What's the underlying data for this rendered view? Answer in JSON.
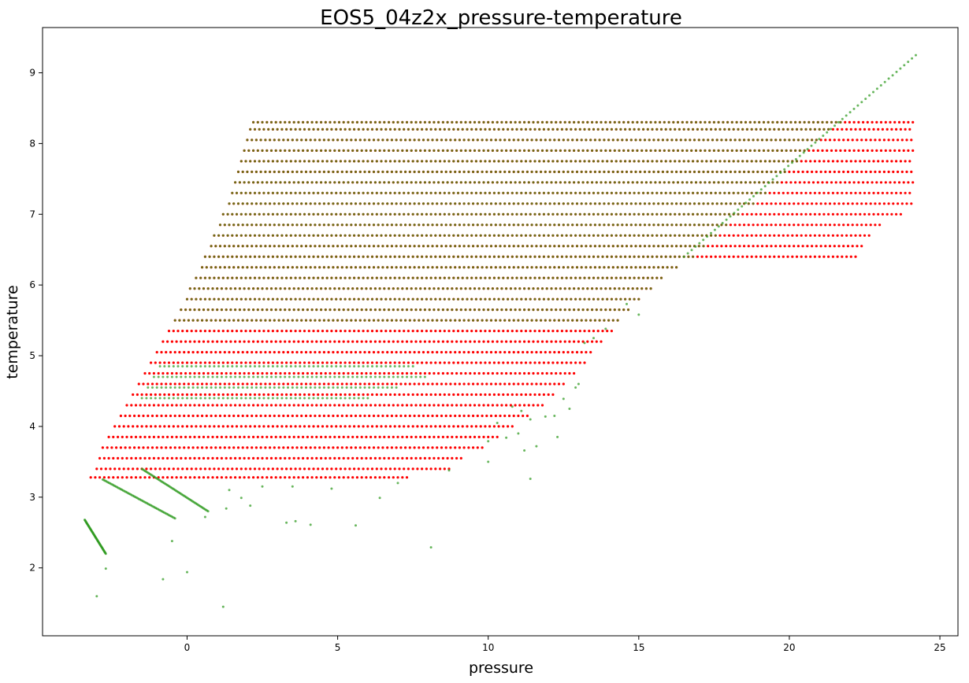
{
  "chart_data": {
    "type": "scatter",
    "title": "EOS5_04z2x_pressure-temperature",
    "xlabel": "pressure",
    "ylabel": "temperature",
    "xlim": [
      -4.8,
      25.6
    ],
    "ylim": [
      1.04,
      9.64
    ],
    "x_ticks": [
      0,
      5,
      10,
      15,
      20,
      25
    ],
    "y_ticks": [
      2,
      3,
      4,
      5,
      6,
      7,
      8,
      9
    ],
    "grid": false,
    "legend": "none",
    "series": [
      {
        "color": "#ff0000",
        "marker": "dot",
        "rows": [
          {
            "y": 3.28,
            "x_start": -3.2,
            "x_end": 7.4
          },
          {
            "y": 3.4,
            "x_start": -3.0,
            "x_end": 8.7
          },
          {
            "y": 3.55,
            "x_start": -2.9,
            "x_end": 9.2
          },
          {
            "y": 3.7,
            "x_start": -2.8,
            "x_end": 9.8
          },
          {
            "y": 3.85,
            "x_start": -2.6,
            "x_end": 10.3
          },
          {
            "y": 4.0,
            "x_start": -2.4,
            "x_end": 10.8
          },
          {
            "y": 4.15,
            "x_start": -2.2,
            "x_end": 11.3
          },
          {
            "y": 4.3,
            "x_start": -2.0,
            "x_end": 11.8
          },
          {
            "y": 4.45,
            "x_start": -1.8,
            "x_end": 12.2
          },
          {
            "y": 4.6,
            "x_start": -1.6,
            "x_end": 12.6
          },
          {
            "y": 4.75,
            "x_start": -1.4,
            "x_end": 12.9
          },
          {
            "y": 4.9,
            "x_start": -1.2,
            "x_end": 13.2
          },
          {
            "y": 5.05,
            "x_start": -1.0,
            "x_end": 13.5
          },
          {
            "y": 5.2,
            "x_start": -0.8,
            "x_end": 13.8
          },
          {
            "y": 5.35,
            "x_start": -0.6,
            "x_end": 14.1
          },
          {
            "y": 5.5,
            "x_start": -0.4,
            "x_end": 14.4
          },
          {
            "y": 5.65,
            "x_start": -0.2,
            "x_end": 14.7
          },
          {
            "y": 5.8,
            "x_start": 0.0,
            "x_end": 15.1
          },
          {
            "y": 5.95,
            "x_start": 0.1,
            "x_end": 15.4
          },
          {
            "y": 6.1,
            "x_start": 0.3,
            "x_end": 15.8
          },
          {
            "y": 6.25,
            "x_start": 0.5,
            "x_end": 16.3
          },
          {
            "y": 6.4,
            "x_start": 0.6,
            "x_end": 22.3
          },
          {
            "y": 6.55,
            "x_start": 0.8,
            "x_end": 22.5
          },
          {
            "y": 6.7,
            "x_start": 0.9,
            "x_end": 22.7
          },
          {
            "y": 6.85,
            "x_start": 1.1,
            "x_end": 23.0
          },
          {
            "y": 7.0,
            "x_start": 1.2,
            "x_end": 23.8
          },
          {
            "y": 7.15,
            "x_start": 1.4,
            "x_end": 24.1
          },
          {
            "y": 7.3,
            "x_start": 1.5,
            "x_end": 24.1
          },
          {
            "y": 7.45,
            "x_start": 1.6,
            "x_end": 24.1
          },
          {
            "y": 7.6,
            "x_start": 1.7,
            "x_end": 24.1
          },
          {
            "y": 7.75,
            "x_start": 1.8,
            "x_end": 24.1
          },
          {
            "y": 7.9,
            "x_start": 1.9,
            "x_end": 24.1
          },
          {
            "y": 8.05,
            "x_start": 2.0,
            "x_end": 24.1
          },
          {
            "y": 8.2,
            "x_start": 2.1,
            "x_end": 24.1
          },
          {
            "y": 8.3,
            "x_start": 2.2,
            "x_end": 24.1
          }
        ]
      },
      {
        "color": "#2e9a1e",
        "marker": "dot",
        "rows": [
          {
            "y": 4.4,
            "x_start": -1.5,
            "x_end": 6.0
          },
          {
            "y": 4.55,
            "x_start": -1.3,
            "x_end": 7.0
          },
          {
            "y": 4.7,
            "x_start": -1.1,
            "x_end": 8.0
          },
          {
            "y": 4.85,
            "x_start": -0.9,
            "x_end": 7.5
          },
          {
            "y": 5.5,
            "x_start": -0.4,
            "x_end": 14.4
          },
          {
            "y": 5.65,
            "x_start": -0.2,
            "x_end": 14.7
          },
          {
            "y": 5.8,
            "x_start": 0.0,
            "x_end": 15.1
          },
          {
            "y": 5.95,
            "x_start": 0.1,
            "x_end": 15.4
          },
          {
            "y": 6.1,
            "x_start": 0.3,
            "x_end": 15.8
          },
          {
            "y": 6.25,
            "x_start": 0.5,
            "x_end": 16.3
          },
          {
            "y": 6.4,
            "x_start": 0.6,
            "x_end": 16.8
          },
          {
            "y": 6.55,
            "x_start": 0.8,
            "x_end": 17.2
          },
          {
            "y": 6.7,
            "x_start": 0.9,
            "x_end": 17.6
          },
          {
            "y": 6.85,
            "x_start": 1.1,
            "x_end": 18.0
          },
          {
            "y": 7.0,
            "x_start": 1.2,
            "x_end": 18.4
          },
          {
            "y": 7.15,
            "x_start": 1.4,
            "x_end": 18.8
          },
          {
            "y": 7.3,
            "x_start": 1.5,
            "x_end": 19.2
          },
          {
            "y": 7.45,
            "x_start": 1.6,
            "x_end": 19.6
          },
          {
            "y": 7.6,
            "x_start": 1.7,
            "x_end": 19.9
          },
          {
            "y": 7.75,
            "x_start": 1.8,
            "x_end": 20.3
          },
          {
            "y": 7.9,
            "x_start": 1.9,
            "x_end": 20.6
          },
          {
            "y": 8.05,
            "x_start": 2.0,
            "x_end": 21.0
          },
          {
            "y": 8.2,
            "x_start": 2.1,
            "x_end": 21.4
          },
          {
            "y": 8.3,
            "x_start": 2.2,
            "x_end": 21.7
          }
        ],
        "lines": [
          {
            "from": [
              16.5,
              6.4
            ],
            "to": [
              24.2,
              9.25
            ]
          },
          {
            "from": [
              -3.4,
              2.68
            ],
            "to": [
              -2.7,
              2.2
            ]
          },
          {
            "from": [
              -2.8,
              3.25
            ],
            "to": [
              -0.4,
              2.7
            ]
          },
          {
            "from": [
              -1.5,
              3.4
            ],
            "to": [
              0.7,
              2.8
            ]
          }
        ],
        "points": [
          [
            -3.0,
            1.6
          ],
          [
            -2.7,
            1.99
          ],
          [
            -0.8,
            1.84
          ],
          [
            0.0,
            1.94
          ],
          [
            1.2,
            1.45
          ],
          [
            -0.5,
            2.38
          ],
          [
            0.6,
            2.72
          ],
          [
            8.1,
            2.29
          ],
          [
            3.3,
            2.64
          ],
          [
            3.6,
            2.66
          ],
          [
            4.1,
            2.61
          ],
          [
            5.6,
            2.6
          ],
          [
            6.4,
            2.99
          ],
          [
            1.8,
            2.99
          ],
          [
            2.1,
            2.88
          ],
          [
            1.3,
            2.84
          ],
          [
            2.5,
            3.15
          ],
          [
            3.5,
            3.15
          ],
          [
            4.8,
            3.12
          ],
          [
            1.4,
            3.1
          ],
          [
            7.0,
            3.2
          ],
          [
            8.7,
            3.38
          ],
          [
            10.0,
            3.5
          ],
          [
            11.4,
            3.26
          ],
          [
            10.6,
            3.84
          ],
          [
            11.0,
            3.9
          ],
          [
            11.2,
            3.66
          ],
          [
            10.0,
            3.79
          ],
          [
            12.3,
            3.85
          ],
          [
            11.6,
            3.72
          ],
          [
            10.3,
            4.05
          ],
          [
            11.4,
            4.1
          ],
          [
            11.9,
            4.14
          ],
          [
            12.2,
            4.15
          ],
          [
            12.7,
            4.25
          ],
          [
            10.8,
            4.28
          ],
          [
            11.1,
            4.22
          ],
          [
            12.5,
            4.39
          ],
          [
            12.9,
            4.55
          ],
          [
            13.0,
            4.6
          ],
          [
            13.2,
            5.18
          ],
          [
            13.5,
            5.25
          ],
          [
            13.9,
            5.38
          ],
          [
            14.6,
            5.73
          ],
          [
            15.0,
            5.58
          ]
        ]
      }
    ]
  }
}
